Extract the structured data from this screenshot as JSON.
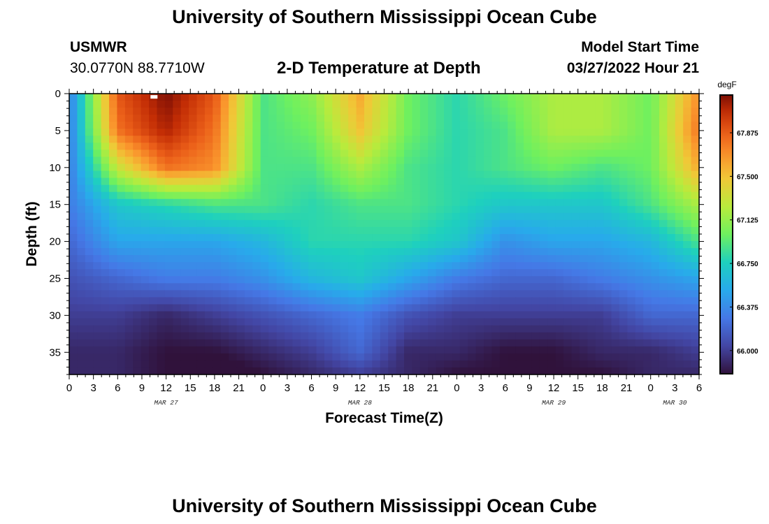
{
  "header": {
    "title": "University of Southern Mississippi Ocean Cube",
    "station": "USMWR",
    "coords": "30.0770N  88.7710W",
    "subtitle": "2-D Temperature at Depth",
    "model_label": "Model Start Time",
    "model_time": "03/27/2022 Hour 21"
  },
  "footer": {
    "title": "University of Southern Mississippi Ocean Cube"
  },
  "chart_data": {
    "type": "heatmap",
    "title": "2-D Temperature at Depth",
    "xlabel": "Forecast Time(Z)",
    "ylabel": "Depth (ft)",
    "x_range_hours": [
      0,
      78
    ],
    "x_tick_step_hours": 3,
    "x_tick_labels": [
      "0",
      "3",
      "6",
      "9",
      "12",
      "15",
      "18",
      "21",
      "0",
      "3",
      "6",
      "9",
      "12",
      "15",
      "18",
      "21",
      "0",
      "3",
      "6",
      "9",
      "12",
      "15",
      "18",
      "21",
      "0",
      "3",
      "6"
    ],
    "date_labels": [
      {
        "label": "MAR 27",
        "hour": 12
      },
      {
        "label": "MAR 28",
        "hour": 36
      },
      {
        "label": "MAR 29",
        "hour": 60
      },
      {
        "label": "MAR 30",
        "hour": 75
      }
    ],
    "y_range_ft": [
      0,
      38
    ],
    "y_ticks": [
      0,
      5,
      10,
      15,
      20,
      25,
      30,
      35
    ],
    "colorbar": {
      "unit": "degF",
      "range": [
        65.8,
        68.2
      ],
      "tick_values": [
        66.0,
        66.375,
        66.75,
        67.125,
        67.5,
        67.875
      ],
      "tick_labels": [
        "66.000",
        "66.375",
        "66.750",
        "67.125",
        "67.500",
        "67.875"
      ]
    },
    "grid": {
      "x_hours": [
        0,
        6,
        12,
        18,
        24,
        30,
        36,
        42,
        48,
        54,
        60,
        66,
        72,
        78
      ],
      "y_depths_ft": [
        0,
        5,
        10,
        15,
        20,
        25,
        30,
        35,
        38
      ],
      "temperature_degF": [
        [
          66.3,
          67.9,
          68.2,
          67.9,
          66.9,
          67.1,
          67.6,
          67.0,
          66.8,
          67.0,
          67.2,
          67.2,
          67.0,
          67.7
        ],
        [
          66.3,
          67.8,
          68.1,
          67.8,
          66.9,
          67.0,
          67.5,
          67.0,
          66.8,
          66.9,
          67.2,
          67.2,
          67.0,
          67.8
        ],
        [
          66.3,
          67.3,
          67.8,
          67.7,
          66.9,
          66.9,
          67.2,
          66.9,
          66.8,
          66.9,
          67.0,
          66.9,
          67.0,
          67.6
        ],
        [
          66.3,
          66.7,
          66.8,
          66.9,
          66.9,
          66.8,
          66.9,
          66.9,
          66.8,
          66.7,
          66.7,
          66.7,
          66.9,
          67.2
        ],
        [
          66.2,
          66.5,
          66.5,
          66.5,
          66.6,
          66.8,
          66.8,
          66.8,
          66.7,
          66.4,
          66.5,
          66.5,
          66.6,
          66.9
        ],
        [
          66.1,
          66.2,
          66.3,
          66.3,
          66.4,
          66.6,
          66.7,
          66.5,
          66.3,
          66.2,
          66.2,
          66.3,
          66.4,
          66.5
        ],
        [
          66.0,
          66.0,
          65.9,
          66.0,
          66.1,
          66.2,
          66.3,
          66.1,
          66.0,
          66.0,
          66.0,
          66.0,
          66.2,
          66.2
        ],
        [
          65.9,
          65.9,
          65.8,
          65.8,
          65.9,
          66.0,
          66.2,
          65.9,
          65.9,
          65.8,
          65.8,
          65.9,
          65.9,
          66.0
        ],
        [
          65.9,
          65.9,
          65.8,
          65.7,
          65.8,
          65.9,
          66.0,
          65.9,
          65.8,
          65.8,
          65.8,
          65.8,
          65.9,
          65.9
        ]
      ]
    },
    "marker": {
      "hour": 10.5,
      "depth_ft": 0.3
    }
  },
  "colors": {
    "frame": "#000000",
    "marker": "#ffffff"
  }
}
